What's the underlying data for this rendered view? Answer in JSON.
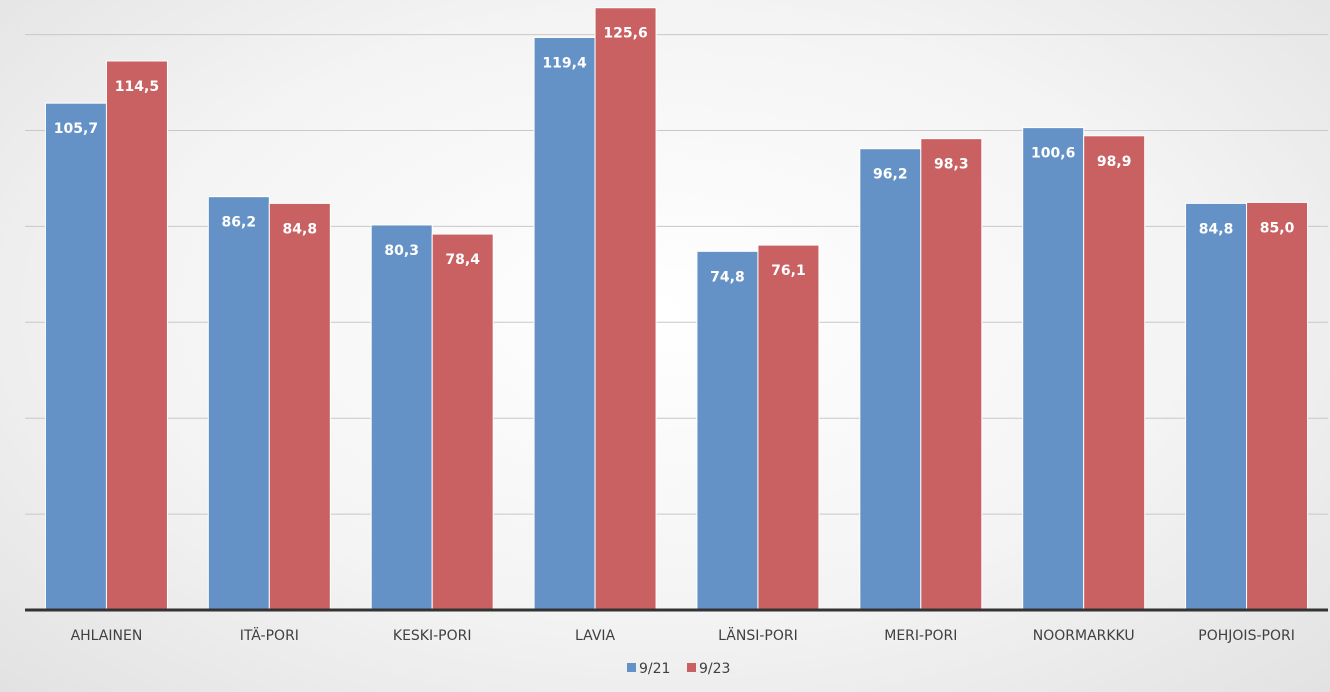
{
  "chart_data": {
    "type": "bar",
    "title": "",
    "xlabel": "",
    "ylabel": "",
    "categories": [
      "AHLAINEN",
      "ITÄ-PORI",
      "KESKI-PORI",
      "LAVIA",
      "LÄNSI-PORI",
      "MERI-PORI",
      "NOORMARKKU",
      "POHJOIS-PORI"
    ],
    "series": [
      {
        "name": "9/21",
        "color": "#6592c6",
        "values": [
          105.7,
          86.2,
          80.3,
          119.4,
          74.8,
          96.2,
          100.6,
          84.8
        ],
        "labels": [
          "105,7",
          "86,2",
          "80,3",
          "119,4",
          "74,8",
          "96,2",
          "100,6",
          "84,8"
        ]
      },
      {
        "name": "9/23",
        "color": "#c96061",
        "values": [
          114.5,
          84.8,
          78.4,
          125.6,
          76.1,
          98.3,
          98.9,
          85.0
        ],
        "labels": [
          "114,5",
          "84,8",
          "78,4",
          "125,6",
          "76,1",
          "98,3",
          "98,9",
          "85,0"
        ]
      }
    ],
    "ylim": [
      0,
      120
    ],
    "y_gridlines": [
      20,
      40,
      60,
      80,
      100,
      120
    ],
    "y_tick_labels_shown": false,
    "grid": true,
    "data_labels": "inside-end",
    "legend": "bottom-center"
  }
}
